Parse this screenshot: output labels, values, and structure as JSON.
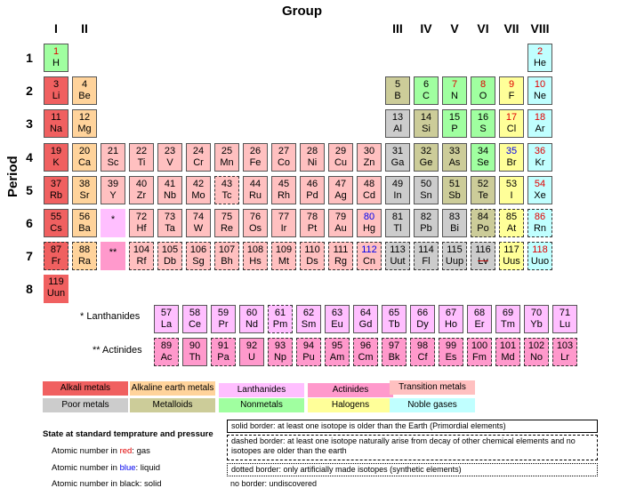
{
  "title": "Group",
  "period_axis_label": "Period",
  "group_labels": [
    {
      "label": "I",
      "col": 1
    },
    {
      "label": "II",
      "col": 2
    },
    {
      "label": "III",
      "col": 13
    },
    {
      "label": "IV",
      "col": 14
    },
    {
      "label": "V",
      "col": 15
    },
    {
      "label": "VI",
      "col": 16
    },
    {
      "label": "VII",
      "col": 17
    },
    {
      "label": "VIII",
      "col": 18
    }
  ],
  "period_labels": [
    "1",
    "2",
    "3",
    "4",
    "5",
    "6",
    "7",
    "8"
  ],
  "colors": {
    "alkali": "#f06060",
    "alkaline": "#ffd39b",
    "lanthanide": "#ffbfff",
    "actinide": "#ff99cc",
    "transition": "#ffc0c0",
    "poor": "#cccccc",
    "metalloid": "#cccc99",
    "nonmetal": "#a0ffa0",
    "halogen": "#ffff99",
    "noble": "#c0ffff"
  },
  "elements": [
    {
      "n": "1",
      "s": "H",
      "p": 1,
      "g": 1,
      "c": "nonmetal",
      "state": "gas",
      "b": "solid"
    },
    {
      "n": "2",
      "s": "He",
      "p": 1,
      "g": 18,
      "c": "noble",
      "state": "gas",
      "b": "solid"
    },
    {
      "n": "3",
      "s": "Li",
      "p": 2,
      "g": 1,
      "c": "alkali",
      "state": "solid",
      "b": "solid"
    },
    {
      "n": "4",
      "s": "Be",
      "p": 2,
      "g": 2,
      "c": "alkaline",
      "state": "solid",
      "b": "solid"
    },
    {
      "n": "5",
      "s": "B",
      "p": 2,
      "g": 13,
      "c": "metalloid",
      "state": "solid",
      "b": "solid"
    },
    {
      "n": "6",
      "s": "C",
      "p": 2,
      "g": 14,
      "c": "nonmetal",
      "state": "solid",
      "b": "solid"
    },
    {
      "n": "7",
      "s": "N",
      "p": 2,
      "g": 15,
      "c": "nonmetal",
      "state": "gas",
      "b": "solid"
    },
    {
      "n": "8",
      "s": "O",
      "p": 2,
      "g": 16,
      "c": "nonmetal",
      "state": "gas",
      "b": "solid"
    },
    {
      "n": "9",
      "s": "F",
      "p": 2,
      "g": 17,
      "c": "halogen",
      "state": "gas",
      "b": "solid"
    },
    {
      "n": "10",
      "s": "Ne",
      "p": 2,
      "g": 18,
      "c": "noble",
      "state": "gas",
      "b": "solid"
    },
    {
      "n": "11",
      "s": "Na",
      "p": 3,
      "g": 1,
      "c": "alkali",
      "state": "solid",
      "b": "solid"
    },
    {
      "n": "12",
      "s": "Mg",
      "p": 3,
      "g": 2,
      "c": "alkaline",
      "state": "solid",
      "b": "solid"
    },
    {
      "n": "13",
      "s": "Al",
      "p": 3,
      "g": 13,
      "c": "poor",
      "state": "solid",
      "b": "solid"
    },
    {
      "n": "14",
      "s": "Si",
      "p": 3,
      "g": 14,
      "c": "metalloid",
      "state": "solid",
      "b": "solid"
    },
    {
      "n": "15",
      "s": "P",
      "p": 3,
      "g": 15,
      "c": "nonmetal",
      "state": "solid",
      "b": "solid"
    },
    {
      "n": "16",
      "s": "S",
      "p": 3,
      "g": 16,
      "c": "nonmetal",
      "state": "solid",
      "b": "solid"
    },
    {
      "n": "17",
      "s": "Cl",
      "p": 3,
      "g": 17,
      "c": "halogen",
      "state": "gas",
      "b": "solid"
    },
    {
      "n": "18",
      "s": "Ar",
      "p": 3,
      "g": 18,
      "c": "noble",
      "state": "gas",
      "b": "solid"
    },
    {
      "n": "19",
      "s": "K",
      "p": 4,
      "g": 1,
      "c": "alkali",
      "state": "solid",
      "b": "solid"
    },
    {
      "n": "20",
      "s": "Ca",
      "p": 4,
      "g": 2,
      "c": "alkaline",
      "state": "solid",
      "b": "solid"
    },
    {
      "n": "21",
      "s": "Sc",
      "p": 4,
      "g": 3,
      "c": "transition",
      "state": "solid",
      "b": "solid"
    },
    {
      "n": "22",
      "s": "Ti",
      "p": 4,
      "g": 4,
      "c": "transition",
      "state": "solid",
      "b": "solid"
    },
    {
      "n": "23",
      "s": "V",
      "p": 4,
      "g": 5,
      "c": "transition",
      "state": "solid",
      "b": "solid"
    },
    {
      "n": "24",
      "s": "Cr",
      "p": 4,
      "g": 6,
      "c": "transition",
      "state": "solid",
      "b": "solid"
    },
    {
      "n": "25",
      "s": "Mn",
      "p": 4,
      "g": 7,
      "c": "transition",
      "state": "solid",
      "b": "solid"
    },
    {
      "n": "26",
      "s": "Fe",
      "p": 4,
      "g": 8,
      "c": "transition",
      "state": "solid",
      "b": "solid"
    },
    {
      "n": "27",
      "s": "Co",
      "p": 4,
      "g": 9,
      "c": "transition",
      "state": "solid",
      "b": "solid"
    },
    {
      "n": "28",
      "s": "Ni",
      "p": 4,
      "g": 10,
      "c": "transition",
      "state": "solid",
      "b": "solid"
    },
    {
      "n": "29",
      "s": "Cu",
      "p": 4,
      "g": 11,
      "c": "transition",
      "state": "solid",
      "b": "solid"
    },
    {
      "n": "30",
      "s": "Zn",
      "p": 4,
      "g": 12,
      "c": "transition",
      "state": "solid",
      "b": "solid"
    },
    {
      "n": "31",
      "s": "Ga",
      "p": 4,
      "g": 13,
      "c": "poor",
      "state": "solid",
      "b": "solid"
    },
    {
      "n": "32",
      "s": "Ge",
      "p": 4,
      "g": 14,
      "c": "metalloid",
      "state": "solid",
      "b": "solid"
    },
    {
      "n": "33",
      "s": "As",
      "p": 4,
      "g": 15,
      "c": "metalloid",
      "state": "solid",
      "b": "solid"
    },
    {
      "n": "34",
      "s": "Se",
      "p": 4,
      "g": 16,
      "c": "nonmetal",
      "state": "solid",
      "b": "solid"
    },
    {
      "n": "35",
      "s": "Br",
      "p": 4,
      "g": 17,
      "c": "halogen",
      "state": "liquid",
      "b": "solid"
    },
    {
      "n": "36",
      "s": "Kr",
      "p": 4,
      "g": 18,
      "c": "noble",
      "state": "gas",
      "b": "solid"
    },
    {
      "n": "37",
      "s": "Rb",
      "p": 5,
      "g": 1,
      "c": "alkali",
      "state": "solid",
      "b": "solid"
    },
    {
      "n": "38",
      "s": "Sr",
      "p": 5,
      "g": 2,
      "c": "alkaline",
      "state": "solid",
      "b": "solid"
    },
    {
      "n": "39",
      "s": "Y",
      "p": 5,
      "g": 3,
      "c": "transition",
      "state": "solid",
      "b": "solid"
    },
    {
      "n": "40",
      "s": "Zr",
      "p": 5,
      "g": 4,
      "c": "transition",
      "state": "solid",
      "b": "solid"
    },
    {
      "n": "41",
      "s": "Nb",
      "p": 5,
      "g": 5,
      "c": "transition",
      "state": "solid",
      "b": "solid"
    },
    {
      "n": "42",
      "s": "Mo",
      "p": 5,
      "g": 6,
      "c": "transition",
      "state": "solid",
      "b": "solid"
    },
    {
      "n": "43",
      "s": "Tc",
      "p": 5,
      "g": 7,
      "c": "transition",
      "state": "solid",
      "b": "dashed"
    },
    {
      "n": "44",
      "s": "Ru",
      "p": 5,
      "g": 8,
      "c": "transition",
      "state": "solid",
      "b": "solid"
    },
    {
      "n": "45",
      "s": "Rh",
      "p": 5,
      "g": 9,
      "c": "transition",
      "state": "solid",
      "b": "solid"
    },
    {
      "n": "46",
      "s": "Pd",
      "p": 5,
      "g": 10,
      "c": "transition",
      "state": "solid",
      "b": "solid"
    },
    {
      "n": "47",
      "s": "Ag",
      "p": 5,
      "g": 11,
      "c": "transition",
      "state": "solid",
      "b": "solid"
    },
    {
      "n": "48",
      "s": "Cd",
      "p": 5,
      "g": 12,
      "c": "transition",
      "state": "solid",
      "b": "solid"
    },
    {
      "n": "49",
      "s": "In",
      "p": 5,
      "g": 13,
      "c": "poor",
      "state": "solid",
      "b": "solid"
    },
    {
      "n": "50",
      "s": "Sn",
      "p": 5,
      "g": 14,
      "c": "poor",
      "state": "solid",
      "b": "solid"
    },
    {
      "n": "51",
      "s": "Sb",
      "p": 5,
      "g": 15,
      "c": "metalloid",
      "state": "solid",
      "b": "solid"
    },
    {
      "n": "52",
      "s": "Te",
      "p": 5,
      "g": 16,
      "c": "metalloid",
      "state": "solid",
      "b": "solid"
    },
    {
      "n": "53",
      "s": "I",
      "p": 5,
      "g": 17,
      "c": "halogen",
      "state": "solid",
      "b": "solid"
    },
    {
      "n": "54",
      "s": "Xe",
      "p": 5,
      "g": 18,
      "c": "noble",
      "state": "gas",
      "b": "solid"
    },
    {
      "n": "55",
      "s": "Cs",
      "p": 6,
      "g": 1,
      "c": "alkali",
      "state": "solid",
      "b": "solid"
    },
    {
      "n": "56",
      "s": "Ba",
      "p": 6,
      "g": 2,
      "c": "alkaline",
      "state": "solid",
      "b": "solid"
    },
    {
      "n": "*",
      "s": "",
      "p": 6,
      "g": 3,
      "c": "lanthanide",
      "state": "solid",
      "b": "none"
    },
    {
      "n": "72",
      "s": "Hf",
      "p": 6,
      "g": 4,
      "c": "transition",
      "state": "solid",
      "b": "solid"
    },
    {
      "n": "73",
      "s": "Ta",
      "p": 6,
      "g": 5,
      "c": "transition",
      "state": "solid",
      "b": "solid"
    },
    {
      "n": "74",
      "s": "W",
      "p": 6,
      "g": 6,
      "c": "transition",
      "state": "solid",
      "b": "solid"
    },
    {
      "n": "75",
      "s": "Re",
      "p": 6,
      "g": 7,
      "c": "transition",
      "state": "solid",
      "b": "solid"
    },
    {
      "n": "76",
      "s": "Os",
      "p": 6,
      "g": 8,
      "c": "transition",
      "state": "solid",
      "b": "solid"
    },
    {
      "n": "77",
      "s": "Ir",
      "p": 6,
      "g": 9,
      "c": "transition",
      "state": "solid",
      "b": "solid"
    },
    {
      "n": "78",
      "s": "Pt",
      "p": 6,
      "g": 10,
      "c": "transition",
      "state": "solid",
      "b": "solid"
    },
    {
      "n": "79",
      "s": "Au",
      "p": 6,
      "g": 11,
      "c": "transition",
      "state": "solid",
      "b": "solid"
    },
    {
      "n": "80",
      "s": "Hg",
      "p": 6,
      "g": 12,
      "c": "transition",
      "state": "liquid",
      "b": "solid"
    },
    {
      "n": "81",
      "s": "Tl",
      "p": 6,
      "g": 13,
      "c": "poor",
      "state": "solid",
      "b": "solid"
    },
    {
      "n": "82",
      "s": "Pb",
      "p": 6,
      "g": 14,
      "c": "poor",
      "state": "solid",
      "b": "solid"
    },
    {
      "n": "83",
      "s": "Bi",
      "p": 6,
      "g": 15,
      "c": "poor",
      "state": "solid",
      "b": "solid"
    },
    {
      "n": "84",
      "s": "Po",
      "p": 6,
      "g": 16,
      "c": "metalloid",
      "state": "solid",
      "b": "dashed"
    },
    {
      "n": "85",
      "s": "At",
      "p": 6,
      "g": 17,
      "c": "halogen",
      "state": "solid",
      "b": "dashed"
    },
    {
      "n": "86",
      "s": "Rn",
      "p": 6,
      "g": 18,
      "c": "noble",
      "state": "gas",
      "b": "dashed"
    },
    {
      "n": "87",
      "s": "Fr",
      "p": 7,
      "g": 1,
      "c": "alkali",
      "state": "solid",
      "b": "dashed"
    },
    {
      "n": "88",
      "s": "Ra",
      "p": 7,
      "g": 2,
      "c": "alkaline",
      "state": "solid",
      "b": "dashed"
    },
    {
      "n": "**",
      "s": "",
      "p": 7,
      "g": 3,
      "c": "actinide",
      "state": "solid",
      "b": "none"
    },
    {
      "n": "104",
      "s": "Rf",
      "p": 7,
      "g": 4,
      "c": "transition",
      "state": "solid",
      "b": "dotted"
    },
    {
      "n": "105",
      "s": "Db",
      "p": 7,
      "g": 5,
      "c": "transition",
      "state": "solid",
      "b": "dotted"
    },
    {
      "n": "106",
      "s": "Sg",
      "p": 7,
      "g": 6,
      "c": "transition",
      "state": "solid",
      "b": "dotted"
    },
    {
      "n": "107",
      "s": "Bh",
      "p": 7,
      "g": 7,
      "c": "transition",
      "state": "solid",
      "b": "dotted"
    },
    {
      "n": "108",
      "s": "Hs",
      "p": 7,
      "g": 8,
      "c": "transition",
      "state": "solid",
      "b": "dotted"
    },
    {
      "n": "109",
      "s": "Mt",
      "p": 7,
      "g": 9,
      "c": "transition",
      "state": "solid",
      "b": "dotted"
    },
    {
      "n": "110",
      "s": "Ds",
      "p": 7,
      "g": 10,
      "c": "transition",
      "state": "solid",
      "b": "dotted"
    },
    {
      "n": "111",
      "s": "Rg",
      "p": 7,
      "g": 11,
      "c": "transition",
      "state": "solid",
      "b": "dotted"
    },
    {
      "n": "112",
      "s": "Cn",
      "p": 7,
      "g": 12,
      "c": "transition",
      "state": "liquid",
      "b": "dotted"
    },
    {
      "n": "113",
      "s": "Uut",
      "p": 7,
      "g": 13,
      "c": "poor",
      "state": "solid",
      "b": "dotted"
    },
    {
      "n": "114",
      "s": "Fl",
      "p": 7,
      "g": 14,
      "c": "poor",
      "state": "solid",
      "b": "dotted"
    },
    {
      "n": "115",
      "s": "Uup",
      "p": 7,
      "g": 15,
      "c": "poor",
      "state": "solid",
      "b": "dotted"
    },
    {
      "n": "116",
      "s": "Lv",
      "p": 7,
      "g": 16,
      "c": "poor",
      "state": "solid",
      "b": "dotted",
      "strike": true
    },
    {
      "n": "117",
      "s": "Uus",
      "p": 7,
      "g": 17,
      "c": "halogen",
      "state": "solid",
      "b": "dotted"
    },
    {
      "n": "118",
      "s": "Uuo",
      "p": 7,
      "g": 18,
      "c": "noble",
      "state": "gas",
      "b": "dotted"
    },
    {
      "n": "119",
      "s": "Uun",
      "p": 8,
      "g": 1,
      "c": "alkali",
      "state": "solid",
      "b": "none"
    }
  ],
  "lanthanides_label": "* Lanthanides",
  "actinides_label": "** Actinides",
  "lanthanides": [
    {
      "n": "57",
      "s": "La",
      "b": "solid"
    },
    {
      "n": "58",
      "s": "Ce",
      "b": "solid"
    },
    {
      "n": "59",
      "s": "Pr",
      "b": "solid"
    },
    {
      "n": "60",
      "s": "Nd",
      "b": "solid"
    },
    {
      "n": "61",
      "s": "Pm",
      "b": "dashed"
    },
    {
      "n": "62",
      "s": "Sm",
      "b": "solid"
    },
    {
      "n": "63",
      "s": "Eu",
      "b": "solid"
    },
    {
      "n": "64",
      "s": "Gd",
      "b": "solid"
    },
    {
      "n": "65",
      "s": "Tb",
      "b": "solid"
    },
    {
      "n": "66",
      "s": "Dy",
      "b": "solid"
    },
    {
      "n": "67",
      "s": "Ho",
      "b": "solid"
    },
    {
      "n": "68",
      "s": "Er",
      "b": "solid"
    },
    {
      "n": "69",
      "s": "Tm",
      "b": "solid"
    },
    {
      "n": "70",
      "s": "Yb",
      "b": "solid"
    },
    {
      "n": "71",
      "s": "Lu",
      "b": "solid"
    }
  ],
  "actinides": [
    {
      "n": "89",
      "s": "Ac",
      "b": "dashed"
    },
    {
      "n": "90",
      "s": "Th",
      "b": "solid"
    },
    {
      "n": "91",
      "s": "Pa",
      "b": "dashed"
    },
    {
      "n": "92",
      "s": "U",
      "b": "solid"
    },
    {
      "n": "93",
      "s": "Np",
      "b": "dashed"
    },
    {
      "n": "94",
      "s": "Pu",
      "b": "dashed"
    },
    {
      "n": "95",
      "s": "Am",
      "b": "dotted"
    },
    {
      "n": "96",
      "s": "Cm",
      "b": "dotted"
    },
    {
      "n": "97",
      "s": "Bk",
      "b": "dotted"
    },
    {
      "n": "98",
      "s": "Cf",
      "b": "dotted"
    },
    {
      "n": "99",
      "s": "Es",
      "b": "dotted"
    },
    {
      "n": "100",
      "s": "Fm",
      "b": "dotted"
    },
    {
      "n": "101",
      "s": "Md",
      "b": "dotted"
    },
    {
      "n": "102",
      "s": "No",
      "b": "dotted"
    },
    {
      "n": "103",
      "s": "Lr",
      "b": "dotted"
    }
  ],
  "legend": [
    {
      "label": "Alkali metals",
      "c": "alkali"
    },
    {
      "label": "Alkaline earth metals",
      "c": "alkaline"
    },
    {
      "label": "Lanthanides",
      "c": "lanthanide"
    },
    {
      "label": "Actinides",
      "c": "actinide"
    },
    {
      "label": "Transition metals",
      "c": "transition"
    },
    {
      "label": "Poor metals",
      "c": "poor"
    },
    {
      "label": "Metalloids",
      "c": "metalloid"
    },
    {
      "label": "Nonmetals",
      "c": "nonmetal"
    },
    {
      "label": "Halogens",
      "c": "halogen"
    },
    {
      "label": "Noble gases",
      "c": "noble"
    }
  ],
  "state_heading": "State at standard temprature and pressure",
  "state_notes": [
    {
      "prefix": "Atomic number in ",
      "word": "red",
      "suffix": ": gas",
      "color": "#e00000"
    },
    {
      "prefix": "Atomic number in ",
      "word": "blue",
      "suffix": ": liquid",
      "color": "#0000ee"
    },
    {
      "prefix": "Atomic number in ",
      "word": "black",
      "suffix": ": solid",
      "color": "#000000"
    }
  ],
  "border_notes": [
    {
      "style": "solid",
      "text": "solid border: at least one isotope is older than the Earth (Primordial elements)"
    },
    {
      "style": "dashed",
      "text": "dashed border: at least one isotope naturally arise from decay of other chemical elements and no isotopes are older than the earth"
    },
    {
      "style": "dotted",
      "text": "dotted border: only artificially made isotopes (synthetic elements)"
    },
    {
      "style": "none",
      "text": "no border: undiscovered"
    }
  ]
}
